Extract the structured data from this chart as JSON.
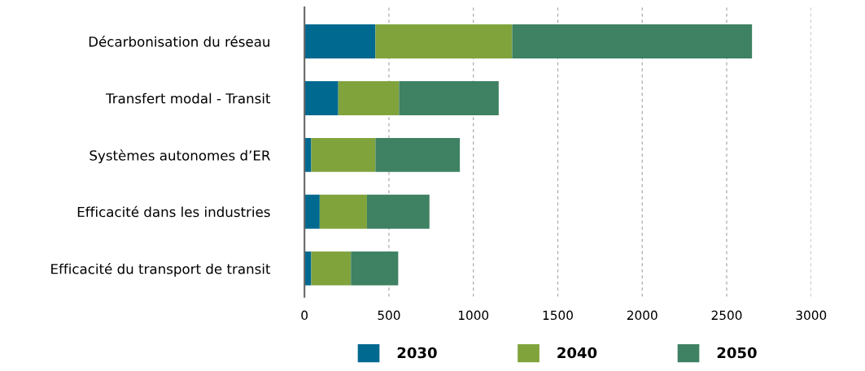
{
  "chart_data": {
    "type": "bar",
    "orientation": "horizontal",
    "stacked": true,
    "categories": [
      "Décarbonisation du réseau",
      "Transfert modal - Transit",
      "Systèmes autonomes d’ER",
      "Efficacité dans les industries",
      "Efficacité du transport de transit"
    ],
    "series": [
      {
        "name": "2030",
        "color": "#006990",
        "values": [
          420,
          200,
          40,
          90,
          40
        ]
      },
      {
        "name": "2040",
        "color": "#80a33c",
        "values": [
          810,
          360,
          380,
          280,
          235
        ]
      },
      {
        "name": "2050",
        "color": "#3e8163",
        "values": [
          1420,
          590,
          500,
          370,
          280
        ]
      }
    ],
    "xlim": [
      0,
      3000
    ],
    "xticks": [
      0,
      500,
      1000,
      1500,
      2000,
      2500,
      3000
    ],
    "grid": "x",
    "legend": "bottom"
  }
}
